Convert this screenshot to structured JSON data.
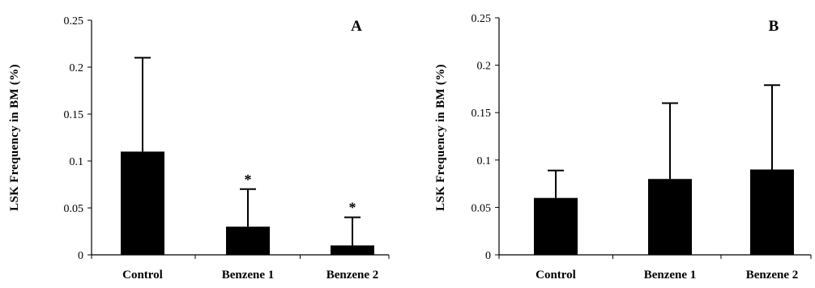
{
  "chart_data": [
    {
      "type": "bar",
      "panel": "A",
      "ylabel": "LSK Frequency in BM (%)",
      "categories": [
        "Control",
        "Benzene 1",
        "Benzene 2"
      ],
      "values": [
        0.11,
        0.03,
        0.01
      ],
      "error_upper": [
        0.21,
        0.07,
        0.04
      ],
      "annotations": [
        "",
        "*",
        "*"
      ],
      "ylim": [
        0,
        0.25
      ],
      "yticks": [
        "0",
        "0.05",
        "0.1",
        "0.15",
        "0.2",
        "0.25"
      ],
      "grid": false,
      "bar_color": "#000000"
    },
    {
      "type": "bar",
      "panel": "B",
      "ylabel": "LSK Frequency in BM (%)",
      "categories": [
        "Control",
        "Benzene 1",
        "Benzene 2"
      ],
      "values": [
        0.06,
        0.08,
        0.09
      ],
      "error_upper": [
        0.089,
        0.16,
        0.179
      ],
      "annotations": [
        "",
        "",
        ""
      ],
      "ylim": [
        0,
        0.25
      ],
      "yticks": [
        "0",
        "0.05",
        "0.1",
        "0.15",
        "0.2",
        "0.25"
      ],
      "grid": false,
      "bar_color": "#000000"
    }
  ]
}
